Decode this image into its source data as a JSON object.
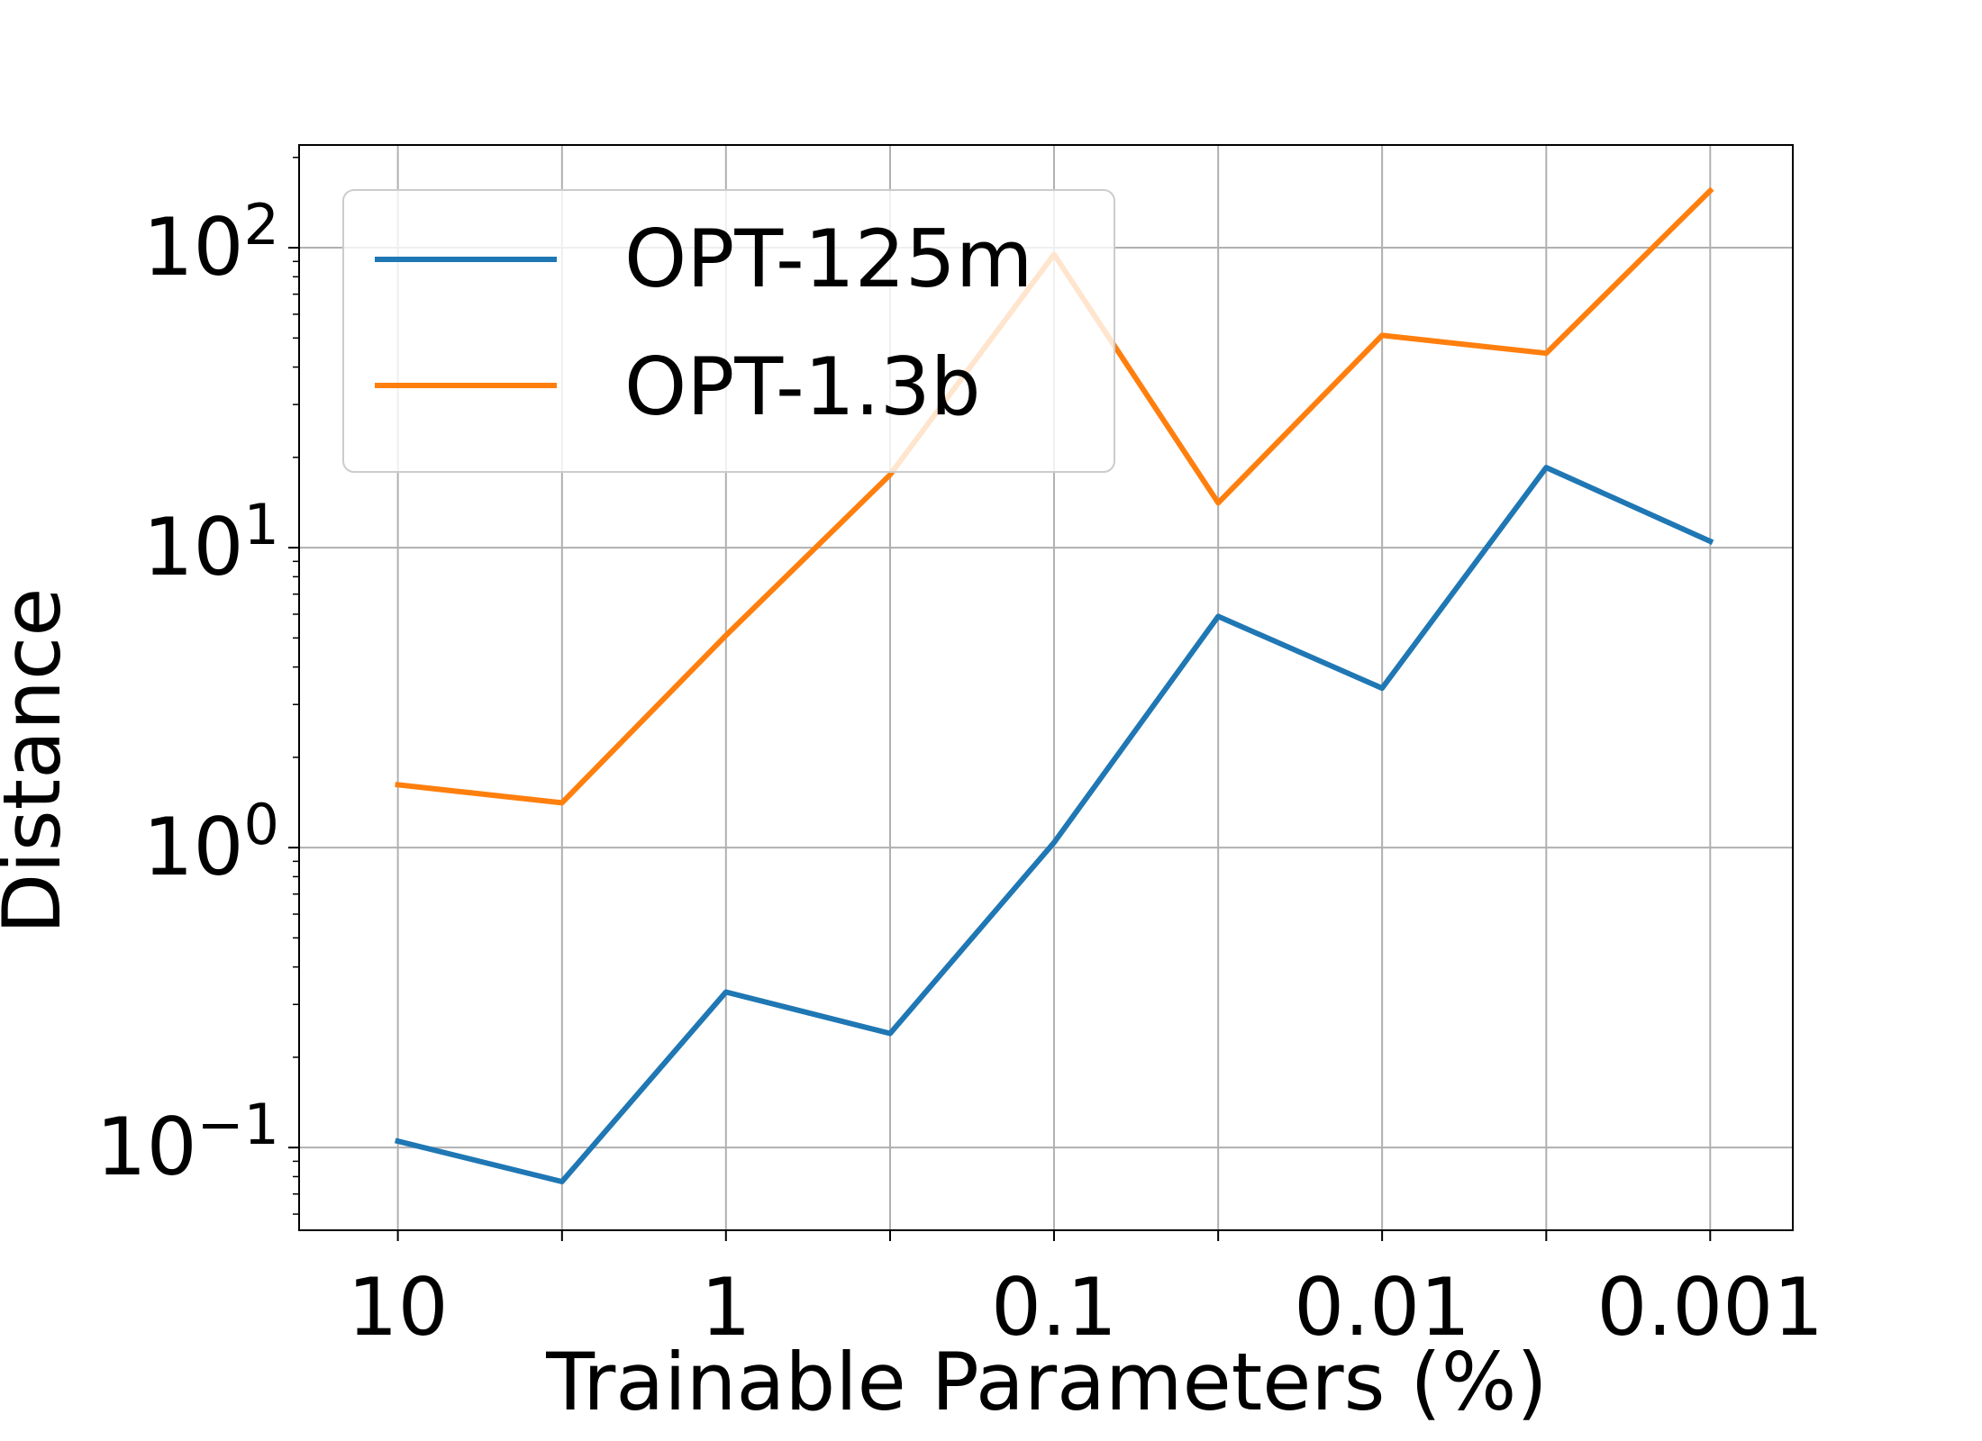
{
  "chart_data": {
    "type": "line",
    "xlabel": "Trainable Parameters (%)",
    "ylabel": "Distance",
    "x_scale": "log-reversed",
    "y_scale": "log",
    "xlim": [
      20,
      0.00056
    ],
    "ylim": [
      0.053,
      220
    ],
    "x_ticks": [
      {
        "value": 10,
        "label": "10"
      },
      {
        "value": 1,
        "label": "1"
      },
      {
        "value": 0.1,
        "label": "0.1"
      },
      {
        "value": 0.01,
        "label": "0.01"
      },
      {
        "value": 0.001,
        "label": "0.001"
      }
    ],
    "x_minor_ticks": [
      3.16,
      0.316,
      0.0316,
      0.00316
    ],
    "y_ticks": [
      {
        "value": 0.1,
        "base": "10",
        "exp": "−1"
      },
      {
        "value": 1,
        "base": "10",
        "exp": "0"
      },
      {
        "value": 10,
        "base": "10",
        "exp": "1"
      },
      {
        "value": 100,
        "base": "10",
        "exp": "2"
      }
    ],
    "grid": true,
    "legend_position": "upper-left",
    "x": [
      10,
      3.16,
      1,
      0.316,
      0.1,
      0.0316,
      0.01,
      0.00316,
      0.001
    ],
    "series": [
      {
        "name": "OPT-125m",
        "color": "#1f77b4",
        "values": [
          0.105,
          0.077,
          0.33,
          0.24,
          1.04,
          5.9,
          3.4,
          18.5,
          10.5
        ]
      },
      {
        "name": "OPT-1.3b",
        "color": "#ff7f0e",
        "values": [
          1.62,
          1.41,
          5.1,
          17.5,
          95,
          14.1,
          51,
          44.5,
          155
        ]
      }
    ]
  }
}
